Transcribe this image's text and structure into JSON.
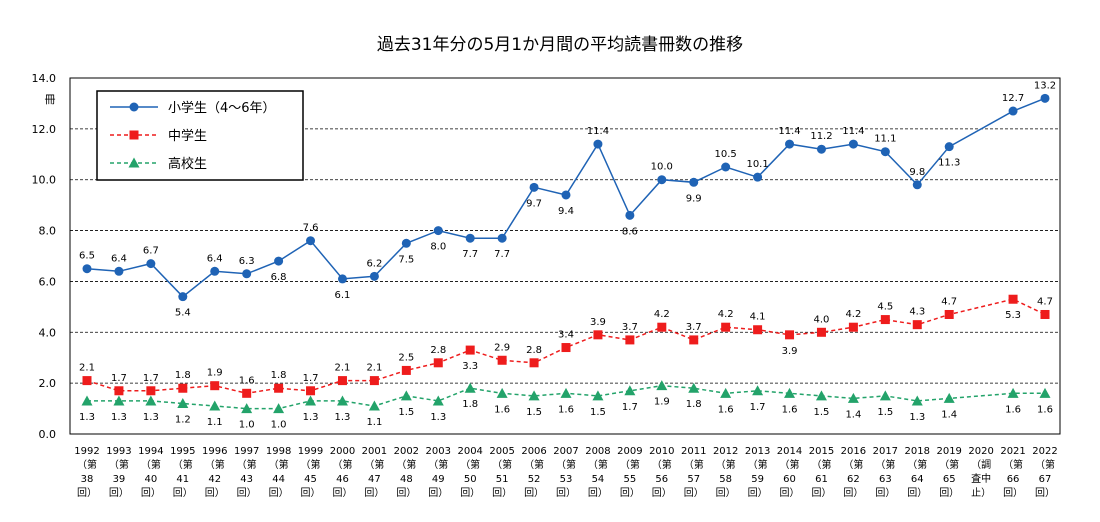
{
  "chart_data": {
    "type": "line",
    "title": "過去31年分の5月1か月間の平均読書冊数の推移",
    "ylabel": "冊",
    "ylim": [
      0,
      14
    ],
    "yticks": [
      "0.0",
      "2.0",
      "4.0",
      "6.0",
      "8.0",
      "10.0",
      "12.0",
      "14.0"
    ],
    "grid": "horizontal-dashed",
    "legend_position": "top-left",
    "categories": [
      [
        "1992",
        "（第",
        "38",
        "回）"
      ],
      [
        "1993",
        "（第",
        "39",
        "回）"
      ],
      [
        "1994",
        "（第",
        "40",
        "回）"
      ],
      [
        "1995",
        "（第",
        "41",
        "回）"
      ],
      [
        "1996",
        "（第",
        "42",
        "回）"
      ],
      [
        "1997",
        "（第",
        "43",
        "回）"
      ],
      [
        "1998",
        "（第",
        "44",
        "回）"
      ],
      [
        "1999",
        "（第",
        "45",
        "回）"
      ],
      [
        "2000",
        "（第",
        "46",
        "回）"
      ],
      [
        "2001",
        "（第",
        "47",
        "回）"
      ],
      [
        "2002",
        "（第",
        "48",
        "回）"
      ],
      [
        "2003",
        "（第",
        "49",
        "回）"
      ],
      [
        "2004",
        "（第",
        "50",
        "回）"
      ],
      [
        "2005",
        "（第",
        "51",
        "回）"
      ],
      [
        "2006",
        "（第",
        "52",
        "回）"
      ],
      [
        "2007",
        "（第",
        "53",
        "回）"
      ],
      [
        "2008",
        "（第",
        "54",
        "回）"
      ],
      [
        "2009",
        "（第",
        "55",
        "回）"
      ],
      [
        "2010",
        "（第",
        "56",
        "回）"
      ],
      [
        "2011",
        "（第",
        "57",
        "回）"
      ],
      [
        "2012",
        "（第",
        "58",
        "回）"
      ],
      [
        "2013",
        "（第",
        "59",
        "回）"
      ],
      [
        "2014",
        "（第",
        "60",
        "回）"
      ],
      [
        "2015",
        "（第",
        "61",
        "回）"
      ],
      [
        "2016",
        "（第",
        "62",
        "回）"
      ],
      [
        "2017",
        "（第",
        "63",
        "回）"
      ],
      [
        "2018",
        "（第",
        "64",
        "回）"
      ],
      [
        "2019",
        "（第",
        "65",
        "回）"
      ],
      [
        "2020",
        "（調",
        "査中",
        "止）"
      ],
      [
        "2021",
        "（第",
        "66",
        "回）"
      ],
      [
        "2022",
        "（第",
        "67",
        "回）"
      ]
    ],
    "series": [
      {
        "name": "小学生（4～6年）",
        "color": "#1f63b5",
        "marker": "circle",
        "line": "solid",
        "values": [
          6.5,
          6.4,
          6.7,
          5.4,
          6.4,
          6.3,
          6.8,
          7.6,
          6.1,
          6.2,
          7.5,
          8.0,
          7.7,
          7.7,
          9.7,
          9.4,
          11.4,
          8.6,
          10.0,
          9.9,
          10.5,
          10.1,
          11.4,
          11.2,
          11.4,
          11.1,
          9.8,
          11.3,
          null,
          12.7,
          13.2
        ],
        "labels": [
          "6.5",
          "6.4",
          "6.7",
          "5.4",
          "6.4",
          "6.3",
          "6.8",
          "7.6",
          "6.1",
          "6.2",
          "7.5",
          "8.0",
          "7.7",
          "7.7",
          "9.7",
          "9.4",
          "11.4",
          "8.6",
          "10.0",
          "9.9",
          "10.5",
          "10.1",
          "11.4",
          "11.2",
          "11.4",
          "11.1",
          "9.8",
          "11.3",
          null,
          "12.7",
          "13.2"
        ],
        "label_pos": [
          "a",
          "a",
          "a",
          "b",
          "a",
          "a",
          "b",
          "a",
          "b",
          "a",
          "b",
          "b",
          "b",
          "b",
          "b",
          "b",
          "a",
          "b",
          "a",
          "b",
          "a",
          "a",
          "a",
          "a",
          "a",
          "a",
          "a",
          "b",
          null,
          "a",
          "a"
        ]
      },
      {
        "name": "中学生",
        "color": "#ee1c1c",
        "marker": "square",
        "line": "dashed",
        "values": [
          2.1,
          1.7,
          1.7,
          1.8,
          1.9,
          1.6,
          1.8,
          1.7,
          2.1,
          2.1,
          2.5,
          2.8,
          3.3,
          2.9,
          2.8,
          3.4,
          3.9,
          3.7,
          4.2,
          3.7,
          4.2,
          4.1,
          3.9,
          4.0,
          4.2,
          4.5,
          4.3,
          4.7,
          null,
          5.3,
          4.7
        ],
        "labels": [
          "2.1",
          "1.7",
          "1.7",
          "1.8",
          "1.9",
          "1.6",
          "1.8",
          "1.7",
          "2.1",
          "2.1",
          "2.5",
          "2.8",
          "3.3",
          "2.9",
          "2.8",
          "3.4",
          "3.9",
          "3.7",
          "4.2",
          "3.7",
          "4.2",
          "4.1",
          "3.9",
          "4.0",
          "4.2",
          "4.5",
          "4.3",
          "4.7",
          null,
          "5.3",
          "4.7"
        ],
        "label_pos": [
          "a",
          "a",
          "a",
          "a",
          "a",
          "a",
          "a",
          "a",
          "a",
          "a",
          "a",
          "a",
          "b",
          "a",
          "a",
          "a",
          "a",
          "a",
          "a",
          "a",
          "a",
          "a",
          "b",
          "a",
          "a",
          "a",
          "a",
          "a",
          null,
          "b",
          "a"
        ]
      },
      {
        "name": "高校生",
        "color": "#23a36a",
        "marker": "triangle",
        "line": "dashed",
        "values": [
          1.3,
          1.3,
          1.3,
          1.2,
          1.1,
          1.0,
          1.0,
          1.3,
          1.3,
          1.1,
          1.5,
          1.3,
          1.8,
          1.6,
          1.5,
          1.6,
          1.5,
          1.7,
          1.9,
          1.8,
          1.6,
          1.7,
          1.6,
          1.5,
          1.4,
          1.5,
          1.3,
          1.4,
          null,
          1.6,
          1.6
        ],
        "labels": [
          "1.3",
          "1.3",
          "1.3",
          "1.2",
          "1.1",
          "1.0",
          "1.0",
          "1.3",
          "1.3",
          "1.1",
          "1.5",
          "1.3",
          "1.8",
          "1.6",
          "1.5",
          "1.6",
          "1.5",
          "1.7",
          "1.9",
          "1.8",
          "1.6",
          "1.7",
          "1.6",
          "1.5",
          "1.4",
          "1.5",
          "1.3",
          "1.4",
          null,
          "1.6",
          "1.6"
        ],
        "label_pos": [
          "b",
          "b",
          "b",
          "b",
          "b",
          "b",
          "b",
          "b",
          "b",
          "b",
          "b",
          "b",
          "b",
          "b",
          "b",
          "b",
          "b",
          "b",
          "b",
          "b",
          "b",
          "b",
          "b",
          "b",
          "b",
          "b",
          "b",
          "b",
          null,
          "b",
          "b"
        ]
      }
    ]
  }
}
